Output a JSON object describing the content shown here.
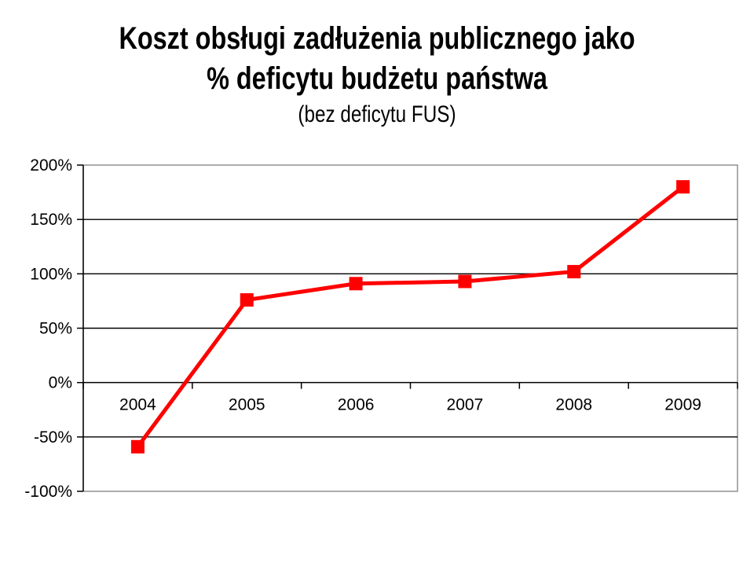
{
  "title": {
    "line1": "Koszt obsługi zadłużenia publicznego jako",
    "line2": "% deficytu budżetu państwa",
    "subtitle": "(bez deficytu FUS)"
  },
  "chart_data": {
    "type": "line",
    "title": "Koszt obsługi zadłużenia publicznego jako % deficytu budżetu państwa",
    "subtitle": "(bez deficytu FUS)",
    "categories": [
      "2004",
      "2005",
      "2006",
      "2007",
      "2008",
      "2009"
    ],
    "values": [
      -59,
      76,
      91,
      93,
      102,
      180
    ],
    "value_unit": "%",
    "ylim": [
      -100,
      200
    ],
    "ytick_values": [
      200,
      150,
      100,
      50,
      0,
      -50,
      -100
    ],
    "ytick_labels": [
      "200%",
      "150%",
      "100%",
      "50%",
      "0%",
      "-50%",
      "-100%"
    ],
    "grid": true,
    "legend": false,
    "marker": "square",
    "line_color": "#FF0000",
    "gridline_color": "#000000",
    "axis_color": "#000000",
    "border_color": "#808080"
  }
}
